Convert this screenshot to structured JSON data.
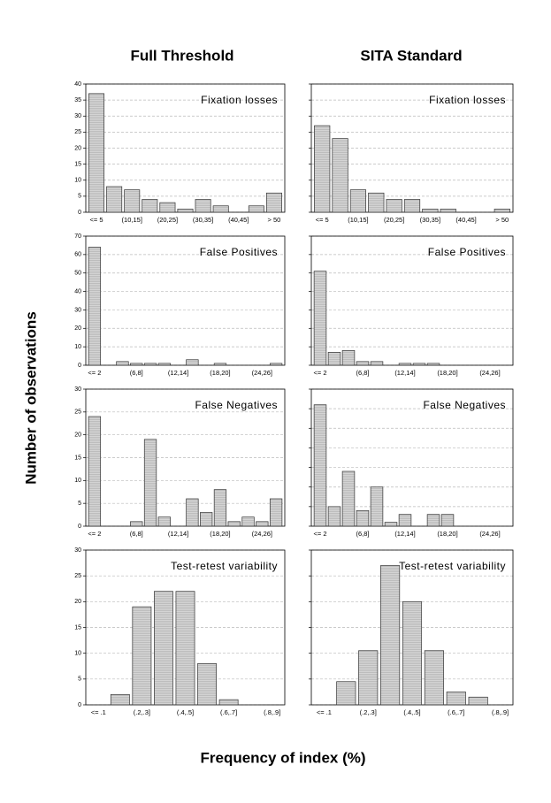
{
  "column_titles": [
    "Full Threshold",
    "SITA Standard"
  ],
  "y_label": "Number of observations",
  "x_label": "Frequency of index (%)",
  "chart_data": [
    {
      "type": "bar",
      "annotation": "Fixation losses",
      "color": "#d4d4d4",
      "grid": true,
      "categories": [
        "<= 5",
        null,
        "(10,15]",
        null,
        "(20,25]",
        null,
        "(30,35]",
        null,
        "(40,45]",
        null,
        "> 50"
      ],
      "values": [
        37,
        8,
        7,
        4,
        3,
        1,
        4,
        2,
        0,
        2,
        6
      ],
      "ylim": [
        0,
        40
      ],
      "yticks": [
        0,
        5,
        10,
        15,
        20,
        25,
        30,
        35,
        40
      ]
    },
    {
      "type": "bar",
      "annotation": "Fixation losses",
      "color": "#d4d4d4",
      "grid": true,
      "categories": [
        "<= 5",
        null,
        "(10,15]",
        null,
        "(20,25]",
        null,
        "(30,35]",
        null,
        "(40,45]",
        null,
        "> 50"
      ],
      "values": [
        27,
        23,
        7,
        6,
        4,
        4,
        1,
        1,
        0,
        0,
        1
      ],
      "ylim": [
        0,
        40
      ],
      "yticks": [
        0,
        5,
        10,
        15,
        20,
        25,
        30,
        35,
        40
      ]
    },
    {
      "type": "bar",
      "annotation": "False Positives",
      "color": "#d4d4d4",
      "grid": true,
      "categories": [
        "<= 2",
        null,
        null,
        "(6,8]",
        null,
        null,
        "(12,14]",
        null,
        null,
        "(18,20]",
        null,
        null,
        "(24,26]",
        null
      ],
      "values": [
        64,
        0,
        2,
        1,
        1,
        1,
        0,
        3,
        0,
        1,
        0,
        0,
        0,
        1
      ],
      "ylim": [
        0,
        70
      ],
      "yticks": [
        0,
        10,
        20,
        30,
        40,
        50,
        60,
        70
      ]
    },
    {
      "type": "bar",
      "annotation": "False Positives",
      "color": "#d4d4d4",
      "grid": true,
      "categories": [
        "<= 2",
        null,
        null,
        "(6,8]",
        null,
        null,
        "(12,14]",
        null,
        null,
        "(18,20]",
        null,
        null,
        "(24,26]",
        null
      ],
      "values": [
        51,
        7,
        8,
        2,
        2,
        0,
        1,
        1,
        1,
        0,
        0,
        0,
        0,
        0
      ],
      "ylim": [
        0,
        70
      ],
      "yticks": [
        0,
        10,
        20,
        30,
        40,
        50,
        60,
        70
      ]
    },
    {
      "type": "bar",
      "annotation": "False Negatives",
      "color": "#d4d4d4",
      "grid": true,
      "categories": [
        "<= 2",
        null,
        null,
        "(6,8]",
        null,
        null,
        "(12,14]",
        null,
        null,
        "(18,20]",
        null,
        null,
        "(24,26]",
        null
      ],
      "values": [
        24,
        0,
        0,
        1,
        19,
        2,
        0,
        6,
        3,
        8,
        1,
        2,
        1,
        6
      ],
      "ylim": [
        0,
        30
      ],
      "yticks": [
        0,
        5,
        10,
        15,
        20,
        25,
        30
      ]
    },
    {
      "type": "bar",
      "annotation": "False Negatives",
      "color": "#d4d4d4",
      "grid": true,
      "categories": [
        "<= 2",
        null,
        null,
        "(6,8]",
        null,
        null,
        "(12,14]",
        null,
        null,
        "(18,20]",
        null,
        null,
        "(24,26]",
        null
      ],
      "values": [
        31,
        5,
        14,
        4,
        10,
        1,
        3,
        0,
        3,
        3,
        0,
        0,
        0,
        0
      ],
      "ylim": [
        0,
        35
      ],
      "yticks": [
        0,
        5,
        10,
        15,
        20,
        25,
        30,
        35
      ]
    },
    {
      "type": "bar",
      "annotation": "Test-retest variability",
      "color": "#d4d4d4",
      "grid": true,
      "categories": [
        "<= .1",
        null,
        "(.2,.3]",
        null,
        "(.4,.5]",
        null,
        "(.6,.7]",
        null,
        "(.8,.9]"
      ],
      "values": [
        0,
        2,
        19,
        22,
        22,
        8,
        1,
        0,
        0
      ],
      "ylim": [
        0,
        30
      ],
      "yticks": [
        0,
        5,
        10,
        15,
        20,
        25,
        30
      ]
    },
    {
      "type": "bar",
      "annotation": "Test-retest variability",
      "color": "#d4d4d4",
      "grid": true,
      "categories": [
        "<= .1",
        null,
        "(.2,.3]",
        null,
        "(.4,.5]",
        null,
        "(.6,.7]",
        null,
        "(.8,.9]"
      ],
      "values": [
        0,
        4.5,
        10.5,
        27,
        20,
        10.5,
        2.5,
        1.5,
        0
      ],
      "ylim": [
        0,
        30
      ],
      "yticks": [
        0,
        5,
        10,
        15,
        20,
        25,
        30
      ]
    }
  ]
}
